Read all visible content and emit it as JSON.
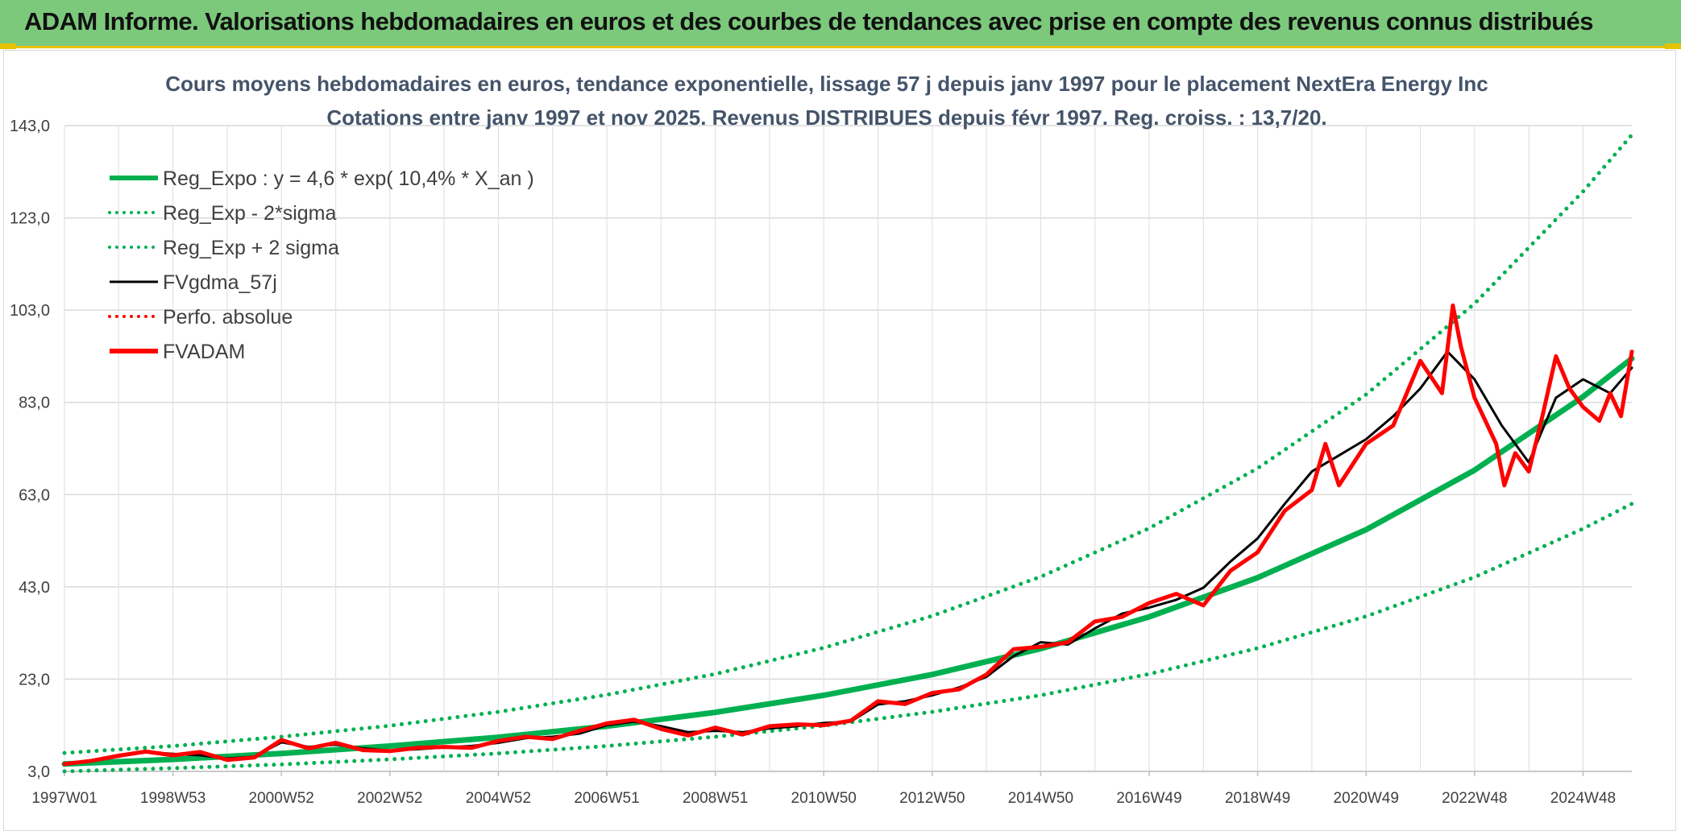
{
  "banner": {
    "title": "ADAM Informe. Valorisations hebdomadaires en euros et des courbes de tendances avec prise en compte des revenus connus distribués"
  },
  "colors": {
    "banner_bg": "#7cc97c",
    "trend_green": "#00b050",
    "fvadam_red": "#ff0000",
    "fvgdma_black": "#000000",
    "title_text": "#44546a"
  },
  "chart_data": {
    "type": "line",
    "title": "Cours moyens hebdomadaires en euros, tendance exponentielle, lissage 57 j depuis janv 1997 pour le placement NextEra Energy Inc",
    "subtitle": "Cotations entre janv 1997 et nov 2025. Revenus DISTRIBUES depuis févr 1997. Reg. croiss. : 13,7/20.",
    "xlabel": "",
    "ylabel": "",
    "ylim": [
      3,
      143
    ],
    "xlim": [
      1997.0,
      2025.9
    ],
    "y_ticks": [
      "143,0",
      "123,0",
      "103,0",
      "83,0",
      "63,0",
      "43,0",
      "23,0",
      "3,0"
    ],
    "y_tick_values": [
      143,
      123,
      103,
      83,
      63,
      43,
      23,
      3
    ],
    "x_ticks": [
      "1997W01",
      "1998W53",
      "2000W52",
      "2002W52",
      "2004W52",
      "2006W51",
      "2008W51",
      "2010W50",
      "2012W50",
      "2014W50",
      "2016W49",
      "2018W49",
      "2020W49",
      "2022W48",
      "2024W48"
    ],
    "x_tick_values": [
      1997.0,
      1999.0,
      2001.0,
      2003.0,
      2005.0,
      2007.0,
      2009.0,
      2011.0,
      2013.0,
      2015.0,
      2017.0,
      2019.0,
      2021.0,
      2023.0,
      2025.0
    ],
    "grid": true,
    "legend_position": "top-left",
    "series": [
      {
        "name": "Reg_Expo : y = 4,6 * exp( 10,4% *  X_an )",
        "color": "#00b050",
        "style": "solid-thick",
        "x": [
          1997.0,
          1999.0,
          2001.0,
          2003.0,
          2005.0,
          2007.0,
          2009.0,
          2011.0,
          2013.0,
          2015.0,
          2017.0,
          2019.0,
          2021.0,
          2023.0,
          2025.0,
          2025.9
        ],
        "values": [
          4.6,
          5.6,
          6.9,
          8.5,
          10.4,
          12.8,
          15.8,
          19.5,
          24.0,
          29.6,
          36.5,
          45.0,
          55.4,
          68.3,
          84.2,
          92.5
        ]
      },
      {
        "name": "Reg_Exp - 2*sigma",
        "color": "#00b050",
        "style": "dotted",
        "x": [
          1997.0,
          1999.0,
          2001.0,
          2003.0,
          2005.0,
          2007.0,
          2009.0,
          2011.0,
          2013.0,
          2015.0,
          2017.0,
          2019.0,
          2021.0,
          2023.0,
          2025.0,
          2025.9
        ],
        "values": [
          3.0,
          3.7,
          4.5,
          5.6,
          6.9,
          8.5,
          10.5,
          12.9,
          15.9,
          19.5,
          24.1,
          29.7,
          36.6,
          45.1,
          55.6,
          61.0
        ]
      },
      {
        "name": "Reg_Exp + 2 sigma",
        "color": "#00b050",
        "style": "dotted",
        "x": [
          1997.0,
          1999.0,
          2001.0,
          2003.0,
          2005.0,
          2007.0,
          2009.0,
          2011.0,
          2013.0,
          2015.0,
          2017.0,
          2019.0,
          2021.0,
          2023.0,
          2025.0,
          2025.9
        ],
        "values": [
          7.0,
          8.5,
          10.5,
          12.9,
          15.9,
          19.6,
          24.1,
          29.8,
          36.7,
          45.2,
          55.7,
          68.7,
          84.7,
          104.4,
          128.7,
          141.0
        ]
      },
      {
        "name": "FVgdma_57j",
        "color": "#000000",
        "style": "solid",
        "x": [
          1997.0,
          1997.5,
          1998.0,
          1998.5,
          1999.0,
          1999.5,
          2000.0,
          2000.5,
          2001.0,
          2001.5,
          2002.0,
          2002.5,
          2003.0,
          2003.5,
          2004.0,
          2004.5,
          2005.0,
          2005.5,
          2006.0,
          2006.5,
          2007.0,
          2007.5,
          2008.0,
          2008.5,
          2009.0,
          2009.5,
          2010.0,
          2010.5,
          2011.0,
          2011.5,
          2012.0,
          2012.5,
          2013.0,
          2013.5,
          2014.0,
          2014.5,
          2015.0,
          2015.5,
          2016.0,
          2016.5,
          2017.0,
          2017.5,
          2018.0,
          2018.5,
          2019.0,
          2019.5,
          2020.0,
          2020.5,
          2021.0,
          2021.5,
          2022.0,
          2022.5,
          2023.0,
          2023.5,
          2024.0,
          2024.5,
          2025.0,
          2025.5,
          2025.9
        ],
        "values": [
          4.6,
          5.2,
          6.2,
          7.2,
          6.8,
          6.5,
          5.8,
          6.2,
          9.3,
          8.3,
          8.8,
          8.0,
          7.5,
          7.8,
          8.2,
          8.5,
          9.2,
          10.2,
          10.5,
          11.2,
          13.0,
          13.8,
          12.8,
          11.5,
          11.8,
          11.5,
          12.3,
          12.8,
          13.5,
          13.8,
          17.5,
          18.2,
          19.5,
          21.2,
          23.5,
          28.0,
          31.0,
          30.5,
          34.0,
          37.2,
          38.5,
          40.2,
          42.8,
          48.5,
          53.5,
          61.0,
          68.0,
          71.5,
          75.0,
          80.0,
          86.0,
          94.0,
          88.0,
          78.0,
          70.0,
          84.0,
          88.0,
          85.0,
          90.5
        ]
      },
      {
        "name": "Perfo. absolue",
        "color": "#ff0000",
        "style": "dotted",
        "x": [],
        "values": []
      },
      {
        "name": "FVADAM",
        "color": "#ff0000",
        "style": "solid-thick",
        "x": [
          1997.0,
          1997.5,
          1998.0,
          1998.5,
          1999.0,
          1999.5,
          2000.0,
          2000.5,
          2001.0,
          2001.5,
          2002.0,
          2002.5,
          2003.0,
          2003.5,
          2004.0,
          2004.5,
          2005.0,
          2005.5,
          2006.0,
          2006.5,
          2007.0,
          2007.5,
          2008.0,
          2008.5,
          2009.0,
          2009.5,
          2010.0,
          2010.5,
          2011.0,
          2011.5,
          2012.0,
          2012.5,
          2013.0,
          2013.5,
          2014.0,
          2014.5,
          2015.0,
          2015.5,
          2016.0,
          2016.5,
          2017.0,
          2017.5,
          2018.0,
          2018.5,
          2019.0,
          2019.5,
          2020.0,
          2020.25,
          2020.5,
          2021.0,
          2021.5,
          2022.0,
          2022.4,
          2022.6,
          2022.75,
          2023.0,
          2023.4,
          2023.55,
          2023.75,
          2024.0,
          2024.25,
          2024.5,
          2024.75,
          2025.0,
          2025.3,
          2025.5,
          2025.7,
          2025.9
        ],
        "values": [
          4.6,
          5.3,
          6.4,
          7.3,
          6.5,
          7.2,
          5.5,
          6.0,
          9.8,
          8.0,
          9.2,
          7.6,
          7.4,
          8.1,
          8.3,
          8.1,
          9.6,
          10.5,
          10.0,
          11.8,
          13.4,
          14.2,
          12.2,
          10.8,
          12.5,
          11.0,
          12.8,
          13.2,
          13.0,
          14.0,
          18.2,
          17.6,
          20.0,
          20.8,
          24.0,
          29.5,
          30.0,
          31.0,
          35.5,
          36.5,
          39.5,
          41.5,
          39.0,
          46.5,
          50.5,
          59.5,
          64.0,
          74.0,
          65.0,
          74.0,
          78.0,
          92.0,
          85.0,
          104.0,
          95.0,
          84.0,
          74.0,
          65.0,
          72.0,
          68.0,
          80.0,
          93.0,
          86.0,
          82.0,
          79.0,
          85.0,
          80.0,
          94.0
        ]
      }
    ]
  }
}
